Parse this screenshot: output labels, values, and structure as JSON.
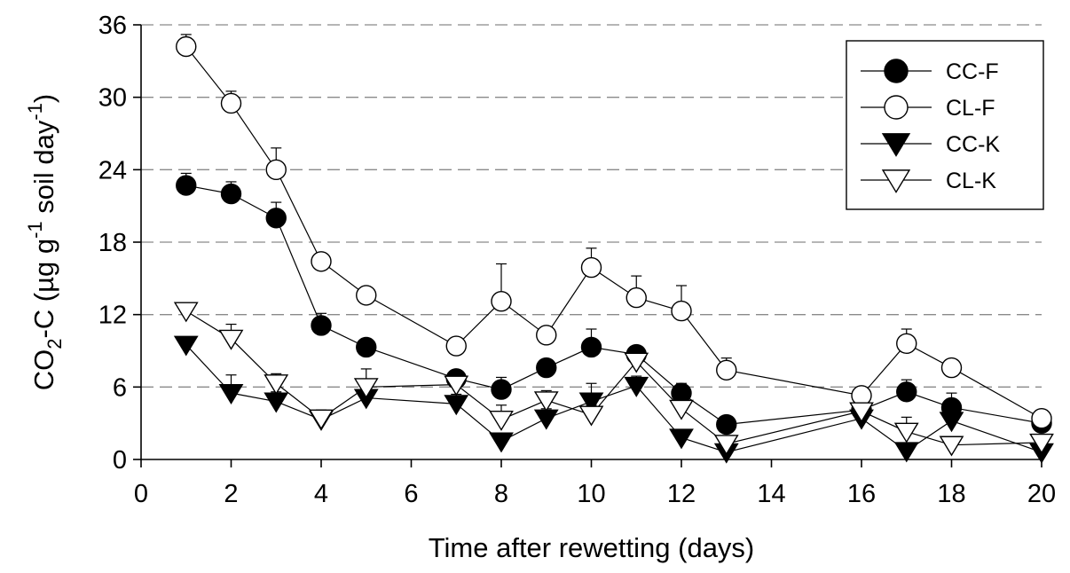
{
  "chart_data": {
    "type": "line",
    "title": "",
    "xlabel": "Time after rewetting (days)",
    "ylabel": {
      "text_main": "CO",
      "text_sub": "2",
      "text_rest": "-C (µg g",
      "text_sup1": "-1",
      "text_mid": " soil day",
      "text_sup2": "-1",
      "text_end": ")"
    },
    "xlim": [
      0,
      20
    ],
    "ylim": [
      0,
      36
    ],
    "x_ticks": [
      0,
      2,
      4,
      6,
      8,
      10,
      12,
      14,
      16,
      18,
      20
    ],
    "y_ticks": [
      0,
      6,
      12,
      18,
      24,
      30,
      36
    ],
    "grid": "horizontal dashed",
    "legend_position": "top-right",
    "x": [
      1,
      2,
      3,
      4,
      5,
      7,
      8,
      9,
      10,
      11,
      12,
      13,
      16,
      17,
      18,
      20
    ],
    "series": [
      {
        "name": "CC-F",
        "marker": "circle",
        "fill": "#000000",
        "values": [
          22.7,
          22.0,
          20.0,
          11.1,
          9.3,
          6.7,
          5.8,
          7.6,
          9.3,
          8.7,
          5.5,
          2.9,
          4.1,
          5.6,
          4.3,
          3.0
        ],
        "errors": [
          1.0,
          1.0,
          1.3,
          1.0,
          0.6,
          0.6,
          1.0,
          0.6,
          1.5,
          0.6,
          0.8,
          0.6,
          0.5,
          1.0,
          1.2,
          0.5
        ]
      },
      {
        "name": "CL-F",
        "marker": "circle",
        "fill": "#ffffff",
        "values": [
          34.2,
          29.5,
          24.0,
          16.4,
          13.6,
          9.4,
          13.1,
          10.3,
          15.9,
          13.4,
          12.3,
          7.4,
          5.3,
          9.6,
          7.6,
          3.4
        ],
        "errors": [
          1.0,
          1.0,
          1.8,
          0.6,
          0.6,
          0.6,
          3.1,
          0.6,
          1.6,
          1.8,
          2.1,
          1.0,
          0.5,
          1.2,
          0.6,
          0.5
        ]
      },
      {
        "name": "CC-K",
        "marker": "triangle-down",
        "fill": "#000000",
        "values": [
          9.5,
          5.5,
          4.8,
          3.3,
          5.1,
          4.6,
          1.5,
          3.4,
          4.8,
          6.1,
          1.8,
          0.6,
          3.4,
          0.7,
          3.2,
          0.6
        ],
        "errors": [
          0.5,
          1.5,
          0.8,
          0.8,
          1.1,
          0.8,
          0.5,
          0.8,
          1.5,
          0.8,
          0.5,
          0.5,
          0.5,
          0.5,
          0.8,
          0.5
        ]
      },
      {
        "name": "CL-K",
        "marker": "triangle-down",
        "fill": "#ffffff",
        "values": [
          12.3,
          10.0,
          6.3,
          3.4,
          6.0,
          6.2,
          3.3,
          4.9,
          3.7,
          8.1,
          4.2,
          1.3,
          4.0,
          2.3,
          1.2,
          1.4
        ],
        "errors": [
          0.5,
          1.2,
          0.8,
          0.6,
          1.5,
          0.6,
          1.2,
          0.8,
          0.8,
          0.8,
          0.8,
          0.5,
          0.5,
          1.2,
          0.5,
          0.5
        ]
      }
    ]
  }
}
